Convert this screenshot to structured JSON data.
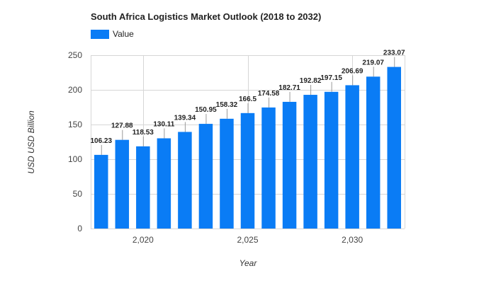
{
  "chart_data": {
    "type": "bar",
    "title": "South Africa Logistics Market Outlook (2018 to 2032)",
    "xlabel": "Year",
    "ylabel": "USD USD Billion",
    "legend": {
      "placement": "top-left"
    },
    "grid": true,
    "ylim": [
      0,
      250
    ],
    "yticks": [
      0,
      50,
      100,
      150,
      200,
      250
    ],
    "xlim": [
      2017.5,
      2032.5
    ],
    "xticks": [
      2020,
      2025,
      2030
    ],
    "xtick_labels": [
      "2,020",
      "2,025",
      "2,030"
    ],
    "colors": {
      "bar": "#0a7cf5",
      "grid": "#d6d6d6"
    },
    "series": [
      {
        "name": "Value",
        "x": [
          2018,
          2019,
          2020,
          2021,
          2022,
          2023,
          2024,
          2025,
          2026,
          2027,
          2028,
          2029,
          2030,
          2031,
          2032
        ],
        "values": [
          106.23,
          127.88,
          118.53,
          130.11,
          139.34,
          150.95,
          158.32,
          166.5,
          174.58,
          182.71,
          192.82,
          197.15,
          206.69,
          219.07,
          233.07
        ],
        "labels": [
          "106.23",
          "127.88",
          "118.53",
          "130.11",
          "139.34",
          "150.95",
          "158.32",
          "166.5",
          "174.58",
          "182.71",
          "192.82",
          "197.15",
          "206.69",
          "219.07",
          "233.07"
        ]
      }
    ]
  }
}
